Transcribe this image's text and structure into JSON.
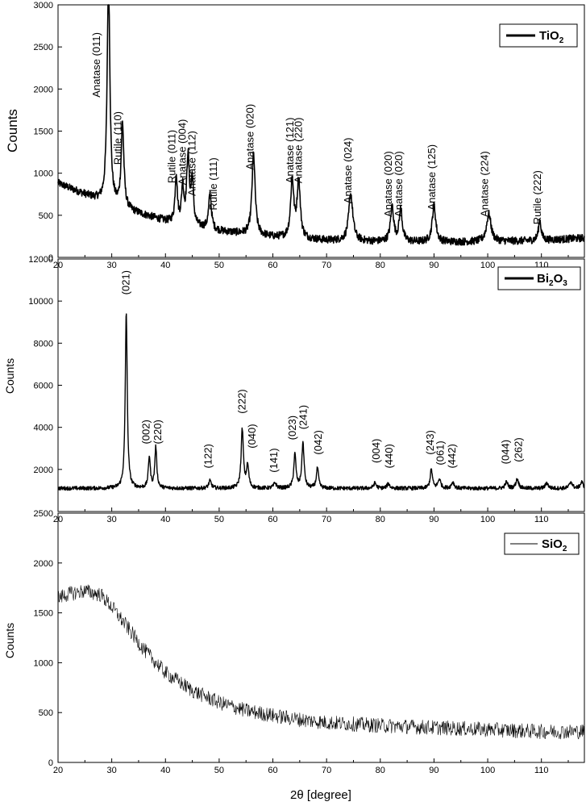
{
  "chart_data": [
    {
      "type": "line",
      "legend": "TiO2",
      "legend_base": "TiO",
      "legend_sub1": "2",
      "legend_mid": "",
      "legend_sub2": "",
      "legend_position": "top-right",
      "ylabel": "Counts",
      "xlim": [
        20,
        118
      ],
      "ylim": [
        0,
        3000
      ],
      "xticks": [
        20,
        30,
        40,
        50,
        60,
        70,
        80,
        90,
        100,
        110
      ],
      "yticks": [
        0,
        500,
        1000,
        1500,
        2000,
        2500,
        3000
      ],
      "baseline": [
        [
          20,
          880
        ],
        [
          30,
          610
        ],
        [
          40,
          430
        ],
        [
          50,
          310
        ],
        [
          60,
          240
        ],
        [
          70,
          200
        ],
        [
          80,
          185
        ],
        [
          90,
          180
        ],
        [
          100,
          185
        ],
        [
          110,
          200
        ],
        [
          118,
          230
        ]
      ],
      "peaks": [
        [
          29.4,
          2740,
          0.3
        ],
        [
          32.0,
          1000,
          0.3
        ],
        [
          42.0,
          570,
          0.25
        ],
        [
          43.2,
          420,
          0.25
        ],
        [
          44.2,
          800,
          0.3
        ],
        [
          45.0,
          530,
          0.25
        ],
        [
          48.3,
          420,
          0.3
        ],
        [
          56.4,
          960,
          0.35
        ],
        [
          63.6,
          680,
          0.35
        ],
        [
          64.8,
          680,
          0.35
        ],
        [
          74.5,
          560,
          0.45
        ],
        [
          82.2,
          420,
          0.35
        ],
        [
          83.8,
          380,
          0.35
        ],
        [
          90.0,
          430,
          0.4
        ],
        [
          100.2,
          330,
          0.5
        ],
        [
          109.7,
          240,
          0.3
        ]
      ],
      "annotations": [
        {
          "text": "Anatase (011)",
          "x": 27.2,
          "y": 1900
        },
        {
          "text": "Rutile (110)",
          "x": 31.2,
          "y": 1100
        },
        {
          "text": "Rutile (011)",
          "x": 41.2,
          "y": 880
        },
        {
          "text": "Anatase (004)",
          "x": 43.2,
          "y": 860
        },
        {
          "text": "Anatase (112)",
          "x": 45.0,
          "y": 730
        },
        {
          "text": "Rutile (111)",
          "x": 49.0,
          "y": 560
        },
        {
          "text": "Anatase (020)",
          "x": 55.8,
          "y": 1040
        },
        {
          "text": "Anatase (121)",
          "x": 63.2,
          "y": 880
        },
        {
          "text": "Anatase (220)",
          "x": 64.8,
          "y": 880
        },
        {
          "text": "Anatase (024)",
          "x": 74.0,
          "y": 640
        },
        {
          "text": "Anatase (020)",
          "x": 81.5,
          "y": 480
        },
        {
          "text": "Anatase (020)",
          "x": 83.5,
          "y": 480
        },
        {
          "text": "Anatase (125)",
          "x": 89.6,
          "y": 560
        },
        {
          "text": "Anatase (224)",
          "x": 99.5,
          "y": 480
        },
        {
          "text": "Rutile (222)",
          "x": 109.3,
          "y": 390
        }
      ]
    },
    {
      "type": "line",
      "legend": "Bi2O3",
      "legend_base": "Bi",
      "legend_sub1": "2",
      "legend_mid": "O",
      "legend_sub2": "3",
      "legend_position": "top-right",
      "ylabel": "Counts",
      "xlim": [
        20,
        118
      ],
      "ylim": [
        0,
        12000
      ],
      "xticks": [
        20,
        30,
        40,
        50,
        60,
        70,
        80,
        90,
        100,
        110
      ],
      "yticks": [
        2000,
        4000,
        6000,
        8000,
        10000
      ],
      "top_tick_label": "12000",
      "baseline": [
        [
          20,
          1100
        ],
        [
          118,
          1100
        ]
      ],
      "peaks": [
        [
          32.7,
          8400,
          0.22
        ],
        [
          37.0,
          1500,
          0.22
        ],
        [
          38.2,
          1950,
          0.22
        ],
        [
          48.3,
          350,
          0.3
        ],
        [
          54.3,
          2800,
          0.25
        ],
        [
          55.3,
          1050,
          0.25
        ],
        [
          60.4,
          250,
          0.3
        ],
        [
          64.1,
          1600,
          0.25
        ],
        [
          65.6,
          2150,
          0.25
        ],
        [
          68.3,
          950,
          0.25
        ],
        [
          79.0,
          250,
          0.3
        ],
        [
          81.5,
          220,
          0.3
        ],
        [
          89.5,
          900,
          0.25
        ],
        [
          91.0,
          430,
          0.3
        ],
        [
          93.5,
          300,
          0.3
        ],
        [
          103.5,
          300,
          0.3
        ],
        [
          105.5,
          450,
          0.3
        ],
        [
          111.0,
          260,
          0.3
        ],
        [
          115.5,
          320,
          0.3
        ],
        [
          117.5,
          300,
          0.3
        ]
      ],
      "annotations": [
        {
          "text": "(021)",
          "x": 32.7,
          "y": 10300
        },
        {
          "text": "(002)",
          "x": 36.4,
          "y": 3200
        },
        {
          "text": "(220)",
          "x": 38.6,
          "y": 3200
        },
        {
          "text": "(122)",
          "x": 48.0,
          "y": 2050
        },
        {
          "text": "(222)",
          "x": 54.3,
          "y": 4650
        },
        {
          "text": "(040)",
          "x": 56.2,
          "y": 3000
        },
        {
          "text": "(141)",
          "x": 60.2,
          "y": 1850
        },
        {
          "text": "(023)",
          "x": 63.7,
          "y": 3400
        },
        {
          "text": "(241)",
          "x": 65.7,
          "y": 3900
        },
        {
          "text": "(042)",
          "x": 68.5,
          "y": 2700
        },
        {
          "text": "(004)",
          "x": 79.3,
          "y": 2300
        },
        {
          "text": "(440)",
          "x": 81.7,
          "y": 2050
        },
        {
          "text": "(243)",
          "x": 89.3,
          "y": 2700
        },
        {
          "text": "(061)",
          "x": 91.2,
          "y": 2200
        },
        {
          "text": "(442)",
          "x": 93.4,
          "y": 2050
        },
        {
          "text": "(044)",
          "x": 103.4,
          "y": 2250
        },
        {
          "text": "(262)",
          "x": 105.8,
          "y": 2350
        }
      ]
    },
    {
      "type": "line",
      "legend": "SiO2",
      "legend_base": "SiO",
      "legend_sub1": "2",
      "legend_mid": "",
      "legend_sub2": "",
      "legend_position": "top-right",
      "ylabel": "Counts",
      "xlabel": "2θ [degree]",
      "xlim": [
        20,
        118
      ],
      "ylim": [
        0,
        2500
      ],
      "xticks": [
        20,
        30,
        40,
        50,
        60,
        70,
        80,
        90,
        100,
        110
      ],
      "yticks": [
        0,
        500,
        1000,
        1500,
        2000
      ],
      "top_tick_label": "2500",
      "baseline": [
        [
          20,
          1650
        ],
        [
          22,
          1690
        ],
        [
          25,
          1720
        ],
        [
          28,
          1680
        ],
        [
          30,
          1560
        ],
        [
          33,
          1350
        ],
        [
          36,
          1130
        ],
        [
          40,
          900
        ],
        [
          45,
          720
        ],
        [
          50,
          600
        ],
        [
          55,
          520
        ],
        [
          60,
          470
        ],
        [
          65,
          430
        ],
        [
          70,
          400
        ],
        [
          80,
          370
        ],
        [
          90,
          350
        ],
        [
          100,
          330
        ],
        [
          110,
          310
        ],
        [
          118,
          310
        ]
      ],
      "peaks": []
    }
  ]
}
